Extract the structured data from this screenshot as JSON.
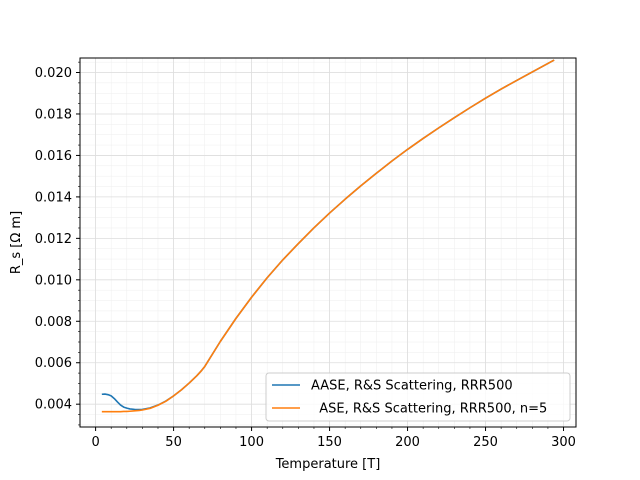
{
  "chart_data": {
    "type": "line",
    "xlabel": "Temperature [T]",
    "ylabel": "R_s [Ω m]",
    "xlim": [
      -10,
      308
    ],
    "ylim": [
      0.0029,
      0.0207
    ],
    "xticks": [
      0,
      50,
      100,
      150,
      200,
      250,
      300
    ],
    "xtick_labels": [
      "0",
      "50",
      "100",
      "150",
      "200",
      "250",
      "300"
    ],
    "yticks": [
      0.004,
      0.006,
      0.008,
      0.01,
      0.012,
      0.014,
      0.016,
      0.018,
      0.02
    ],
    "ytick_labels": [
      "0.004",
      "0.006",
      "0.008",
      "0.010",
      "0.012",
      "0.014",
      "0.016",
      "0.018",
      "0.020"
    ],
    "grid": true,
    "minor_grid": true,
    "legend_position": "lower-right",
    "series": [
      {
        "name": "AASE, R&S Scattering, RRR500",
        "color": "#1f77b4",
        "x": [
          4,
          6,
          8,
          10,
          12,
          14,
          16,
          18,
          20,
          22,
          25,
          28,
          30,
          35,
          40,
          45,
          50,
          55,
          60,
          65,
          68,
          70,
          80,
          90,
          100,
          110,
          120,
          130,
          140,
          150,
          160,
          170,
          180,
          190,
          200,
          210,
          220,
          230,
          240,
          250,
          260,
          270,
          280,
          294
        ],
        "y": [
          0.00448,
          0.00449,
          0.00446,
          0.0044,
          0.00427,
          0.00411,
          0.00396,
          0.00386,
          0.00381,
          0.00377,
          0.00375,
          0.00374,
          0.00375,
          0.00382,
          0.00396,
          0.00415,
          0.0044,
          0.00469,
          0.00502,
          0.00538,
          0.00563,
          0.00582,
          0.00703,
          0.00814,
          0.00916,
          0.0101,
          0.01096,
          0.01175,
          0.01251,
          0.01322,
          0.01389,
          0.01453,
          0.01514,
          0.01573,
          0.01629,
          0.01682,
          0.01733,
          0.01782,
          0.0183,
          0.01876,
          0.0192,
          0.01962,
          0.02003,
          0.0206
        ]
      },
      {
        "name": "  ASE, R&S Scattering, RRR500, n=5",
        "color": "#ff7f0e",
        "x": [
          4,
          6,
          8,
          10,
          12,
          14,
          16,
          18,
          20,
          22,
          25,
          28,
          30,
          35,
          40,
          45,
          50,
          55,
          60,
          65,
          68,
          70,
          80,
          90,
          100,
          110,
          120,
          130,
          140,
          150,
          160,
          170,
          180,
          190,
          200,
          210,
          220,
          230,
          240,
          250,
          260,
          270,
          280,
          294
        ],
        "y": [
          0.00364,
          0.00364,
          0.00364,
          0.00364,
          0.00364,
          0.00364,
          0.00364,
          0.00365,
          0.00365,
          0.00366,
          0.00368,
          0.0037,
          0.00372,
          0.0038,
          0.00395,
          0.00414,
          0.0044,
          0.00469,
          0.00502,
          0.00538,
          0.00563,
          0.00582,
          0.00703,
          0.00814,
          0.00916,
          0.0101,
          0.01096,
          0.01175,
          0.01251,
          0.01322,
          0.01389,
          0.01453,
          0.01514,
          0.01573,
          0.01629,
          0.01682,
          0.01733,
          0.01782,
          0.0183,
          0.01876,
          0.0192,
          0.01962,
          0.02003,
          0.0206
        ]
      }
    ]
  }
}
